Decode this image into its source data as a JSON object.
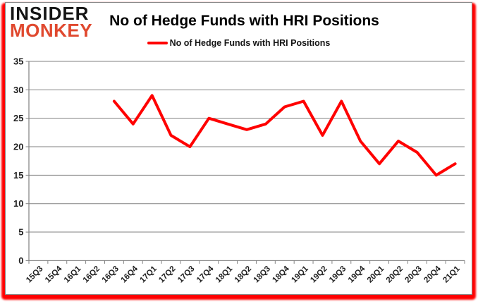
{
  "logo": {
    "line1": "INSIDER",
    "line2": "MONKEY"
  },
  "header": {
    "title": "No of Hedge Funds with HRI Positions"
  },
  "legend": {
    "label": "No of Hedge Funds with HRI Positions"
  },
  "colors": {
    "line": "#FF0000",
    "grid": "#808080",
    "label": "#1F1F1F",
    "border": "#8A8A8A",
    "logo_accent": "#E0492F",
    "underlay": "#FF0000"
  },
  "chart_data": {
    "type": "line",
    "title": "No of Hedge Funds with HRI Positions",
    "categories": [
      "15Q3",
      "15Q4",
      "16Q1",
      "16Q2",
      "16Q3",
      "16Q4",
      "17Q1",
      "17Q2",
      "17Q3",
      "17Q4",
      "18Q1",
      "18Q2",
      "18Q3",
      "18Q4",
      "19Q1",
      "19Q2",
      "19Q3",
      "19Q4",
      "20Q1",
      "20Q2",
      "20Q3",
      "20Q4",
      "21Q1"
    ],
    "series": [
      {
        "name": "No of Hedge Funds with HRI Positions",
        "color": "#FF0000",
        "start_index": 4,
        "values": [
          28,
          24,
          29,
          22,
          20,
          25,
          24,
          23,
          24,
          27,
          28,
          22,
          28,
          21,
          17,
          21,
          19,
          15,
          17
        ]
      }
    ],
    "xlabel": "",
    "ylabel": "",
    "ylim": [
      0,
      35
    ],
    "ytick_step": 5,
    "grid": true,
    "legend_position": "top"
  }
}
